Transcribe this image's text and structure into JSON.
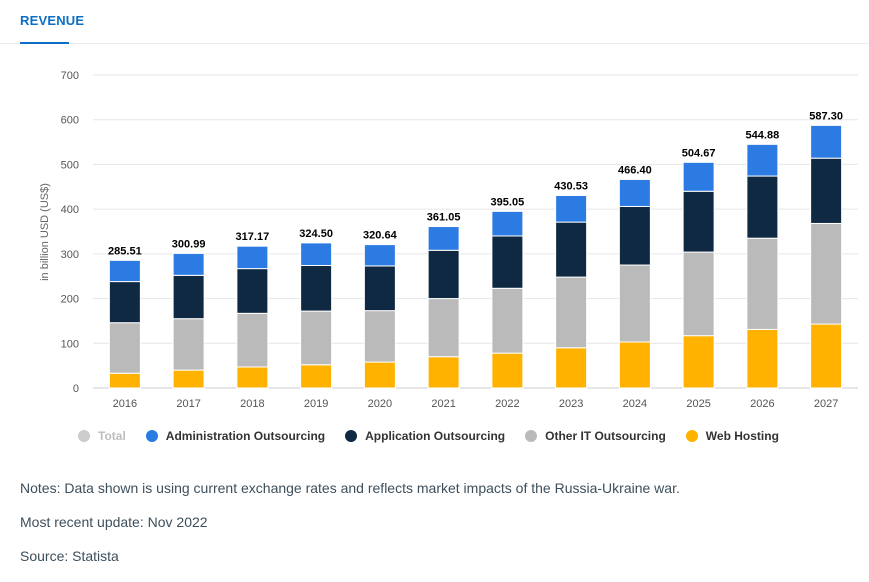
{
  "tab": {
    "label": "REVENUE"
  },
  "chart_data": {
    "type": "bar",
    "stacked": true,
    "categories": [
      "2016",
      "2017",
      "2018",
      "2019",
      "2020",
      "2021",
      "2022",
      "2023",
      "2024",
      "2025",
      "2026",
      "2027"
    ],
    "ylabel": "in billion USD (US$)",
    "ylim": [
      0,
      700
    ],
    "yticks": [
      0,
      100,
      200,
      300,
      400,
      500,
      600,
      700
    ],
    "grid": true,
    "legend_position": "bottom",
    "totals": [
      285.51,
      300.99,
      317.17,
      324.5,
      320.64,
      361.05,
      395.05,
      430.53,
      466.4,
      504.67,
      544.88,
      587.3
    ],
    "total_labels": [
      "285.51",
      "300.99",
      "317.17",
      "324.50",
      "320.64",
      "361.05",
      "395.05",
      "430.53",
      "466.40",
      "504.67",
      "544.88",
      "587.30"
    ],
    "series": [
      {
        "name": "Web Hosting",
        "color": "#ffb300",
        "values": [
          33,
          40,
          47,
          52,
          58,
          70,
          78,
          90,
          103,
          117,
          131,
          143
        ]
      },
      {
        "name": "Other IT Outsourcing",
        "color": "#bababa",
        "values": [
          113,
          115,
          120,
          120,
          115,
          130,
          145,
          158,
          172,
          187,
          204,
          225
        ]
      },
      {
        "name": "Application Outsourcing",
        "color": "#0f2942",
        "values": [
          92,
          97,
          100,
          102,
          100,
          108,
          117,
          123,
          131,
          136,
          139,
          146
        ]
      },
      {
        "name": "Administration Outsourcing",
        "color": "#2b7be3",
        "values": [
          47.51,
          48.99,
          50.17,
          50.5,
          47.64,
          53.05,
          55.05,
          59.53,
          60.4,
          64.67,
          70.88,
          73.3
        ]
      }
    ]
  },
  "legend": [
    {
      "label": "Total",
      "color": "#cccccc",
      "dim": true
    },
    {
      "label": "Administration Outsourcing",
      "color": "#2b7be3",
      "dim": false
    },
    {
      "label": "Application Outsourcing",
      "color": "#0f2942",
      "dim": false
    },
    {
      "label": "Other IT Outsourcing",
      "color": "#bababa",
      "dim": false
    },
    {
      "label": "Web Hosting",
      "color": "#ffb300",
      "dim": false
    }
  ],
  "notes": {
    "note": "Notes: Data shown is using current exchange rates and reflects market impacts of the Russia-Ukraine war.",
    "update": "Most recent update: Nov 2022",
    "source": "Source: Statista"
  }
}
